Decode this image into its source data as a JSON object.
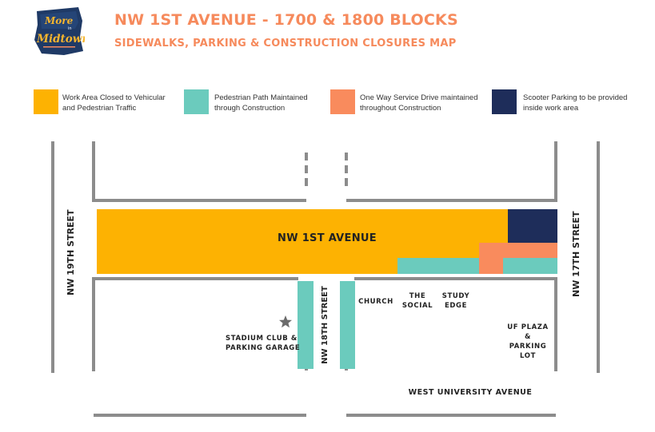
{
  "header": {
    "logo_text_1": "More",
    "logo_text_2": "in",
    "logo_text_3": "Midtown",
    "title": "NW 1ST AVENUE - 1700 & 1800 BLOCKS",
    "subtitle": "SIDEWALKS, PARKING & CONSTRUCTION CLOSURES MAP"
  },
  "legend": [
    {
      "color": "#fdb202",
      "line1": "Work Area Closed to Vehicular",
      "line2": "and Pedestrian Traffic"
    },
    {
      "color": "#6bcbbd",
      "line1": "Pedestrian Path Maintained",
      "line2": "through Construction"
    },
    {
      "color": "#f98b5d",
      "line1": "One Way Service Drive maintained",
      "line2": "throughout Construction"
    },
    {
      "color": "#1e2d5a",
      "line1": "Scooter Parking to be provided",
      "line2": "inside work area"
    }
  ],
  "streets": {
    "nw_1st_avenue": "NW 1ST AVENUE",
    "nw_19th_street": "NW 19TH STREET",
    "nw_18th_street": "NW 18TH STREET",
    "nw_17th_street": "NW 17TH STREET",
    "west_university_avenue": "WEST UNIVERSITY AVENUE"
  },
  "places": {
    "stadium_club_line1": "STADIUM CLUB &",
    "stadium_club_line2": "PARKING GARAGE",
    "church": "CHURCH",
    "the_social_line1": "THE",
    "the_social_line2": "SOCIAL",
    "study_edge_line1": "STUDY",
    "study_edge_line2": "EDGE",
    "uf_plaza_line1": "UF PLAZA",
    "uf_plaza_line2": "&",
    "uf_plaza_line3": "PARKING",
    "uf_plaza_line4": "LOT"
  },
  "map_colors": {
    "road_line": "#8c8c8c",
    "work_area": "#fdb202",
    "pedestrian": "#6bcbbd",
    "service_drive": "#f98b5d",
    "scooter": "#1e2d5a",
    "star": "#6b6b6b"
  }
}
